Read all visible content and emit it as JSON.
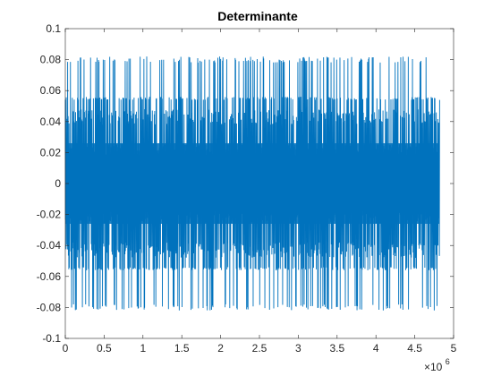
{
  "chart_data": {
    "type": "line",
    "title": "Determinante",
    "xlabel": "",
    "ylabel": "",
    "xlim": [
      0,
      5000000
    ],
    "ylim": [
      -0.1,
      0.1
    ],
    "grid": false,
    "x_tick_values": [
      0,
      500000,
      1000000,
      1500000,
      2000000,
      2500000,
      3000000,
      3500000,
      4000000,
      4500000,
      5000000
    ],
    "x_tick_labels": [
      "0",
      "0.5",
      "1",
      "1.5",
      "2",
      "2.5",
      "3",
      "3.5",
      "4",
      "4.5",
      "5"
    ],
    "x_multiplier_base": "×10",
    "x_multiplier_exp": "6",
    "y_tick_values": [
      -0.1,
      -0.08,
      -0.06,
      -0.04,
      -0.02,
      0,
      0.02,
      0.04,
      0.06,
      0.08,
      0.1
    ],
    "y_tick_labels": [
      "-0.1",
      "-0.08",
      "-0.06",
      "-0.04",
      "-0.02",
      "0",
      "0.02",
      "0.04",
      "0.06",
      "0.08",
      "0.1"
    ],
    "series": [
      {
        "color": "#0072bd",
        "x_range": [
          0,
          4820000
        ],
        "amplitude_envelope": {
          "max": 0.082,
          "min": -0.082,
          "dense_band": [
            -0.056,
            0.056
          ],
          "core_band": [
            -0.026,
            0.026
          ]
        },
        "x_end_value": 4820000
      }
    ]
  }
}
